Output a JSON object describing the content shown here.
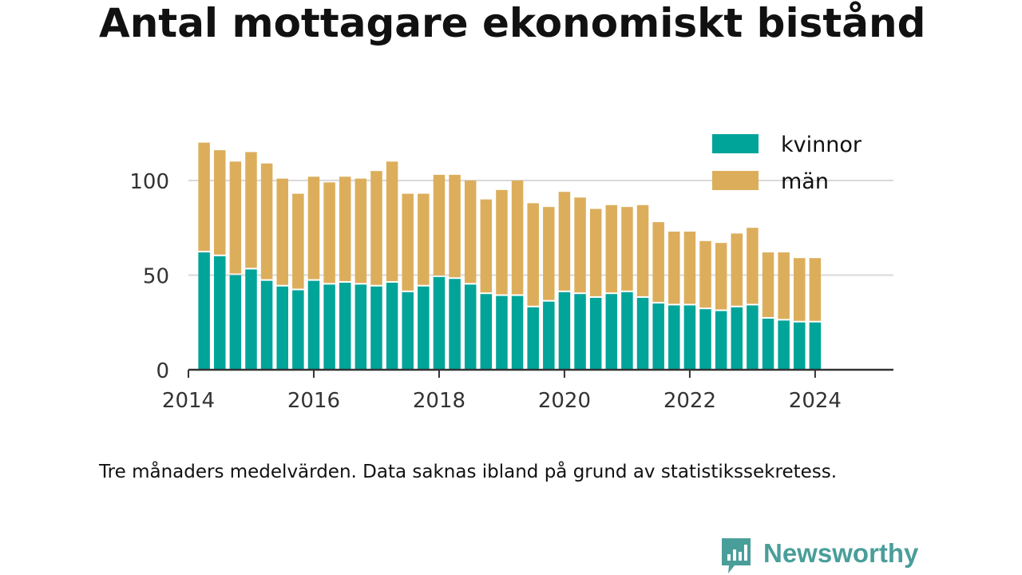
{
  "title": "Antal mottagare ekonomiskt bistånd",
  "note": "Tre månaders medelvärden. Data saknas ibland på grund av statistikssekretess.",
  "brand": {
    "name": "Newsworthy"
  },
  "colors": {
    "kvinnor": "#00a499",
    "man": "#dcae5c",
    "axis": "#333333",
    "grid": "#d9d9d9",
    "text": "#333333"
  },
  "chart_data": {
    "type": "bar",
    "stacked": true,
    "title": "Antal mottagare ekonomiskt bistånd",
    "x": [
      "2014-04",
      "2014-07",
      "2014-10",
      "2015-01",
      "2015-04",
      "2015-07",
      "2015-10",
      "2016-01",
      "2016-04",
      "2016-07",
      "2016-10",
      "2017-01",
      "2017-04",
      "2017-07",
      "2017-10",
      "2018-01",
      "2018-04",
      "2018-07",
      "2018-10",
      "2019-01",
      "2019-04",
      "2019-07",
      "2019-10",
      "2020-01",
      "2020-04",
      "2020-07",
      "2020-10",
      "2021-01",
      "2021-04",
      "2021-07",
      "2021-10",
      "2022-01",
      "2022-04",
      "2022-07",
      "2022-10",
      "2023-01",
      "2023-04",
      "2023-07",
      "2023-10",
      "2024-01"
    ],
    "series": [
      {
        "name": "kvinnor",
        "values": [
          62,
          60,
          50,
          53,
          47,
          44,
          42,
          47,
          45,
          46,
          45,
          44,
          46,
          41,
          44,
          49,
          48,
          45,
          40,
          39,
          39,
          33,
          36,
          41,
          40,
          38,
          40,
          41,
          38,
          35,
          34,
          34,
          32,
          31,
          33,
          34,
          27,
          26,
          25,
          25
        ]
      },
      {
        "name": "män",
        "values": [
          58,
          56,
          60,
          62,
          62,
          57,
          51,
          55,
          54,
          56,
          56,
          61,
          64,
          52,
          49,
          54,
          55,
          55,
          50,
          56,
          61,
          55,
          50,
          53,
          51,
          47,
          47,
          45,
          49,
          43,
          39,
          39,
          36,
          36,
          39,
          41,
          35,
          36,
          34,
          34
        ]
      }
    ],
    "xticks": [
      "2014",
      "2016",
      "2018",
      "2020",
      "2022",
      "2024"
    ],
    "yticks": [
      0,
      50,
      100
    ],
    "ylim": [
      0,
      120
    ],
    "xlim": [
      "2014-01",
      "2025-04"
    ],
    "grid": "horizontal",
    "legend_position": "top-right"
  }
}
